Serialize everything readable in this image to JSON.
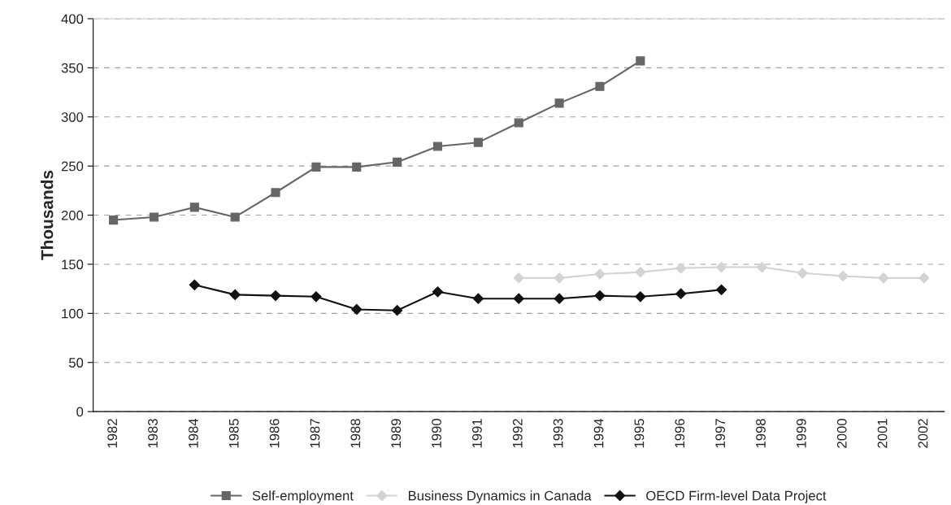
{
  "chart_data": {
    "type": "line",
    "ylabel": "Thousands",
    "categories": [
      "1982",
      "1983",
      "1984",
      "1985",
      "1986",
      "1987",
      "1988",
      "1989",
      "1990",
      "1991",
      "1992",
      "1993",
      "1994",
      "1995",
      "1996",
      "1997",
      "1998",
      "1999",
      "2000",
      "2001",
      "2002"
    ],
    "series": [
      {
        "name": "Self-employment",
        "color": "#666666",
        "marker": "square",
        "values": [
          195,
          198,
          208,
          198,
          223,
          249,
          249,
          254,
          270,
          274,
          294,
          314,
          331,
          357,
          null,
          null,
          null,
          null,
          null,
          null,
          null
        ]
      },
      {
        "name": "Business Dynamics in Canada",
        "color": "#d3d3d3",
        "marker": "diamond",
        "values": [
          null,
          null,
          null,
          null,
          null,
          null,
          null,
          null,
          null,
          null,
          136,
          136,
          140,
          142,
          146,
          147,
          147,
          141,
          138,
          136,
          136
        ]
      },
      {
        "name": "OECD Firm-level Data Project",
        "color": "#111111",
        "marker": "diamond",
        "values": [
          null,
          null,
          129,
          119,
          118,
          117,
          104,
          103,
          122,
          115,
          115,
          115,
          118,
          117,
          120,
          124,
          null,
          null,
          null,
          null,
          null
        ]
      }
    ],
    "ylim": [
      0,
      400
    ],
    "yticks": [
      0,
      50,
      100,
      150,
      200,
      250,
      300,
      350,
      400
    ],
    "grid": "y",
    "legend": "bottom",
    "line_style": "solid"
  }
}
